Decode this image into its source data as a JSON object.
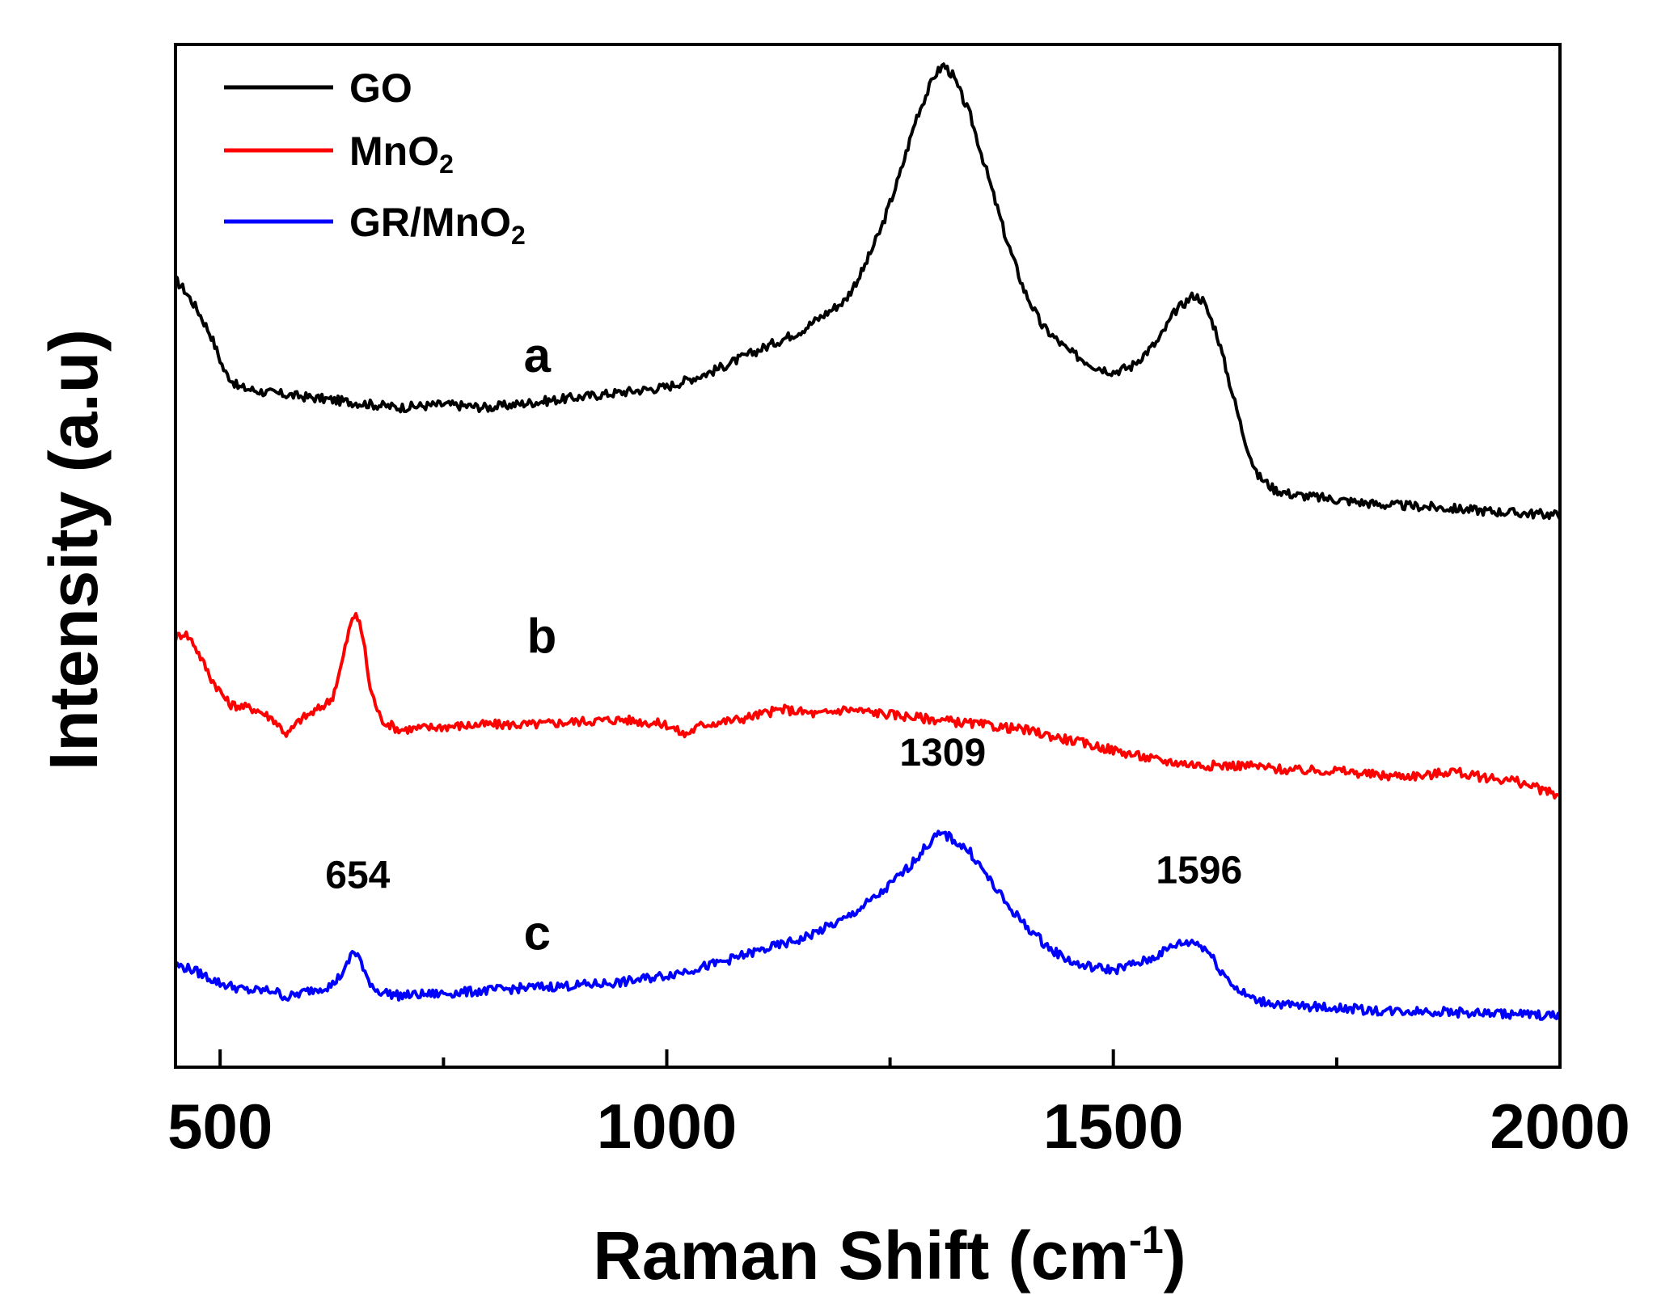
{
  "chart_data": {
    "type": "line",
    "title": "",
    "xlabel": {
      "base": "Raman Shift (cm",
      "superscript": "-1",
      "suffix": ")"
    },
    "ylabel": "Intensity (a.u)",
    "xlim": [
      450,
      2000
    ],
    "ylim": [
      0,
      100
    ],
    "x_ticks": [
      500,
      1000,
      1500,
      2000
    ],
    "y_ticks_shown": false,
    "grid": false,
    "legend_position": "top-left",
    "series": [
      {
        "id": "go",
        "name": "GO",
        "legend_base": "GO",
        "legend_subscript": "",
        "color": "#000000",
        "curve_label": "a",
        "curve_label_x": 855,
        "curve_label_y": 68,
        "points": [
          [
            450,
            77
          ],
          [
            460,
            76
          ],
          [
            475,
            74
          ],
          [
            490,
            71.5
          ],
          [
            505,
            68
          ],
          [
            520,
            66.5
          ],
          [
            550,
            66
          ],
          [
            600,
            65.5
          ],
          [
            650,
            65
          ],
          [
            700,
            64.5
          ],
          [
            750,
            64.8
          ],
          [
            800,
            64.5
          ],
          [
            850,
            65
          ],
          [
            900,
            65.5
          ],
          [
            950,
            66
          ],
          [
            1000,
            66.5
          ],
          [
            1050,
            68
          ],
          [
            1100,
            70
          ],
          [
            1150,
            72
          ],
          [
            1200,
            75
          ],
          [
            1220,
            78
          ],
          [
            1240,
            82
          ],
          [
            1260,
            87
          ],
          [
            1280,
            93
          ],
          [
            1300,
            97
          ],
          [
            1310,
            98
          ],
          [
            1320,
            97
          ],
          [
            1340,
            93
          ],
          [
            1360,
            87
          ],
          [
            1380,
            81
          ],
          [
            1400,
            76
          ],
          [
            1420,
            72.5
          ],
          [
            1450,
            70
          ],
          [
            1480,
            68.5
          ],
          [
            1500,
            68
          ],
          [
            1520,
            68.5
          ],
          [
            1550,
            71
          ],
          [
            1570,
            74
          ],
          [
            1590,
            75.5
          ],
          [
            1600,
            75
          ],
          [
            1615,
            72
          ],
          [
            1630,
            67
          ],
          [
            1645,
            62
          ],
          [
            1660,
            58
          ],
          [
            1680,
            56.5
          ],
          [
            1700,
            56
          ],
          [
            1750,
            55.5
          ],
          [
            1800,
            55
          ],
          [
            1850,
            54.8
          ],
          [
            1900,
            54.5
          ],
          [
            1950,
            54.2
          ],
          [
            2000,
            54
          ]
        ]
      },
      {
        "id": "mno2",
        "name": "MnO2",
        "legend_base": "MnO",
        "legend_subscript": "2",
        "color": "#ff0000",
        "curve_label": "b",
        "curve_label_x": 860,
        "curve_label_y": 40.5,
        "points": [
          [
            450,
            42
          ],
          [
            460,
            42.5
          ],
          [
            470,
            41.5
          ],
          [
            490,
            38
          ],
          [
            510,
            35.5
          ],
          [
            540,
            35
          ],
          [
            560,
            34
          ],
          [
            575,
            32.5
          ],
          [
            590,
            34
          ],
          [
            610,
            35
          ],
          [
            625,
            36
          ],
          [
            635,
            39
          ],
          [
            645,
            43
          ],
          [
            652,
            44.5
          ],
          [
            660,
            42
          ],
          [
            668,
            37
          ],
          [
            680,
            34
          ],
          [
            700,
            33
          ],
          [
            750,
            33.3
          ],
          [
            800,
            33.5
          ],
          [
            850,
            33.5
          ],
          [
            900,
            33.8
          ],
          [
            950,
            34
          ],
          [
            1000,
            33.5
          ],
          [
            1020,
            32.5
          ],
          [
            1040,
            33.5
          ],
          [
            1080,
            34
          ],
          [
            1130,
            35
          ],
          [
            1170,
            34.5
          ],
          [
            1200,
            35
          ],
          [
            1250,
            34.5
          ],
          [
            1300,
            34
          ],
          [
            1350,
            33.5
          ],
          [
            1400,
            33
          ],
          [
            1450,
            32
          ],
          [
            1500,
            31
          ],
          [
            1550,
            30
          ],
          [
            1600,
            29.5
          ],
          [
            1650,
            29.5
          ],
          [
            1700,
            29
          ],
          [
            1750,
            29
          ],
          [
            1800,
            28.5
          ],
          [
            1850,
            28.5
          ],
          [
            1880,
            29
          ],
          [
            1900,
            28.5
          ],
          [
            1950,
            28
          ],
          [
            2000,
            26.5
          ]
        ]
      },
      {
        "id": "grmno2",
        "name": "GR/MnO2",
        "legend_base": "GR/MnO",
        "legend_subscript": "2",
        "color": "#0000ff",
        "curve_label": "c",
        "curve_label_x": 855,
        "curve_label_y": 11.5,
        "points": [
          [
            450,
            10
          ],
          [
            470,
            9.5
          ],
          [
            500,
            8.2
          ],
          [
            530,
            7.5
          ],
          [
            560,
            7.5
          ],
          [
            575,
            6.8
          ],
          [
            600,
            7.5
          ],
          [
            625,
            8
          ],
          [
            640,
            9.5
          ],
          [
            648,
            11.3
          ],
          [
            655,
            11
          ],
          [
            662,
            9
          ],
          [
            675,
            7.5
          ],
          [
            700,
            7
          ],
          [
            750,
            7.2
          ],
          [
            800,
            7.5
          ],
          [
            850,
            7.8
          ],
          [
            900,
            8
          ],
          [
            950,
            8.3
          ],
          [
            1000,
            9
          ],
          [
            1050,
            10
          ],
          [
            1100,
            11.3
          ],
          [
            1150,
            12.5
          ],
          [
            1200,
            14.5
          ],
          [
            1240,
            17
          ],
          [
            1270,
            19.5
          ],
          [
            1290,
            21.5
          ],
          [
            1300,
            22.5
          ],
          [
            1310,
            22.8
          ],
          [
            1320,
            22.3
          ],
          [
            1340,
            21
          ],
          [
            1360,
            18.5
          ],
          [
            1380,
            16
          ],
          [
            1400,
            14
          ],
          [
            1430,
            11.5
          ],
          [
            1460,
            10
          ],
          [
            1500,
            9.5
          ],
          [
            1540,
            10.5
          ],
          [
            1570,
            12
          ],
          [
            1590,
            12.3
          ],
          [
            1605,
            11.5
          ],
          [
            1620,
            9.5
          ],
          [
            1640,
            7.5
          ],
          [
            1660,
            6.5
          ],
          [
            1700,
            6
          ],
          [
            1750,
            5.8
          ],
          [
            1800,
            5.5
          ],
          [
            1850,
            5.5
          ],
          [
            1900,
            5.3
          ],
          [
            1950,
            5.2
          ],
          [
            2000,
            5
          ]
        ]
      }
    ],
    "annotations": [
      {
        "text": "654",
        "x": 654,
        "y": 17.5
      },
      {
        "text": "1309",
        "x": 1309,
        "y": 29.5
      },
      {
        "text": "1596",
        "x": 1596,
        "y": 18
      }
    ]
  }
}
